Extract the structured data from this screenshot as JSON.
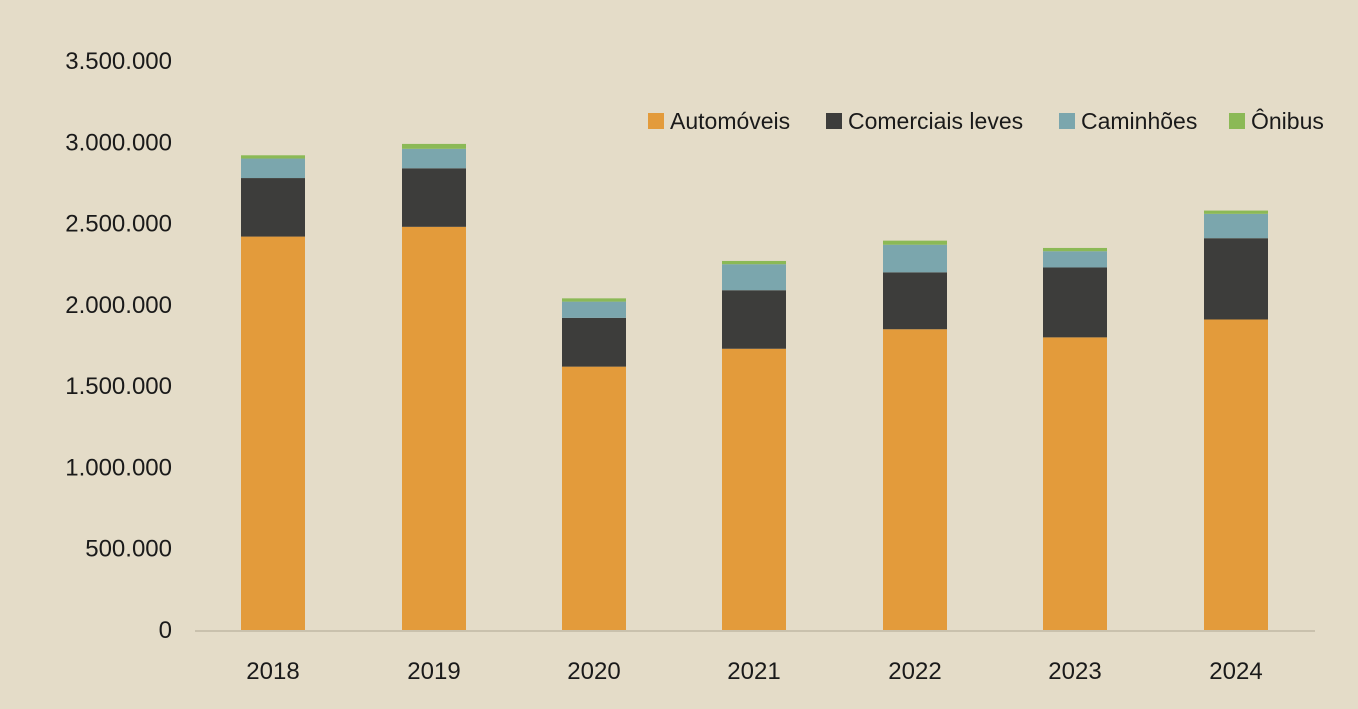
{
  "chart_data": {
    "type": "bar",
    "stacked": true,
    "title": "",
    "xlabel": "",
    "ylabel": "",
    "ylim": [
      0,
      3500000
    ],
    "y_tick_values": [
      0,
      500000,
      1000000,
      1500000,
      2000000,
      2500000,
      3000000,
      3500000
    ],
    "y_tick_labels": [
      "0",
      "500.000",
      "1.000.000",
      "1.500.000",
      "2.000.000",
      "2.500.000",
      "3.000.000",
      "3.500.000"
    ],
    "categories": [
      "2018",
      "2019",
      "2020",
      "2021",
      "2022",
      "2023",
      "2024"
    ],
    "series": [
      {
        "name": "Automóveis",
        "color": "#e39b3b",
        "values": [
          2420000,
          2480000,
          1620000,
          1730000,
          1850000,
          1800000,
          1910000
        ]
      },
      {
        "name": "Comerciais leves",
        "color": "#3d3d3b",
        "values": [
          360000,
          360000,
          300000,
          360000,
          350000,
          430000,
          500000
        ]
      },
      {
        "name": "Caminhões",
        "color": "#7ba6ad",
        "values": [
          120000,
          120000,
          100000,
          160000,
          170000,
          100000,
          150000
        ]
      },
      {
        "name": "Ônibus",
        "color": "#8bb956",
        "values": [
          20000,
          30000,
          20000,
          20000,
          25000,
          20000,
          20000
        ]
      }
    ],
    "legend_position": "top-right",
    "grid": false
  }
}
